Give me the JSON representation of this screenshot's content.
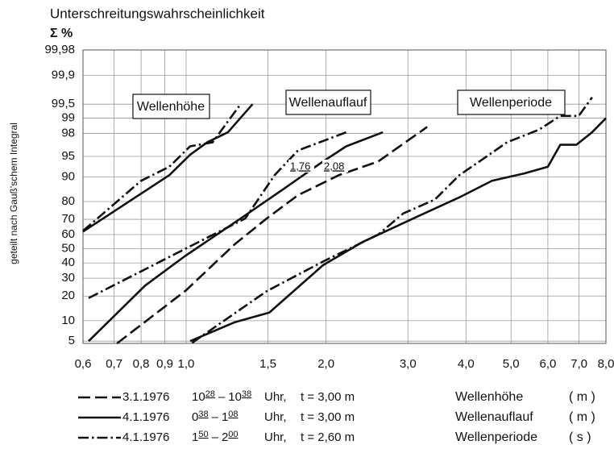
{
  "chart_data": {
    "type": "line",
    "title": "Unterschreitungswahrscheinlichkeit",
    "subtitle": "Σ %",
    "ylabel": "geteilt nach Gauß'schem Integral",
    "yscale": "probability",
    "xscale": "log",
    "grid": true,
    "xlim": [
      0.6,
      8.0
    ],
    "ylim": [
      4.6,
      99.98
    ],
    "xticks": [
      {
        "value": 0.6,
        "label": "0,6"
      },
      {
        "value": 0.7,
        "label": "0,7"
      },
      {
        "value": 0.8,
        "label": "0,8"
      },
      {
        "value": 0.9,
        "label": "0,9"
      },
      {
        "value": 1.0,
        "label": "1,0"
      },
      {
        "value": 1.5,
        "label": "1,5"
      },
      {
        "value": 2.0,
        "label": "2,0"
      },
      {
        "value": 3.0,
        "label": "3,0"
      },
      {
        "value": 4.0,
        "label": "4,0"
      },
      {
        "value": 5.0,
        "label": "5,0"
      },
      {
        "value": 6.0,
        "label": "6,0"
      },
      {
        "value": 7.0,
        "label": "7,0"
      },
      {
        "value": 8.0,
        "label": "8,0"
      }
    ],
    "yticks": [
      5,
      10,
      20,
      30,
      40,
      50,
      60,
      70,
      80,
      90,
      95,
      98,
      99,
      {
        "value": 99.5,
        "label": "99,5"
      },
      {
        "value": 99.9,
        "label": "99,9"
      },
      {
        "value": 99.98,
        "label": "99,98"
      }
    ],
    "annotations": [
      "Wellenhöhe",
      "Wellenauflauf",
      "Wellenperiode",
      "1,76",
      "2,08"
    ],
    "series": [
      {
        "group": "Wellenhöhe",
        "style": "solid",
        "x": [
          0.6,
          0.92,
          1.02,
          1.11,
          1.23,
          1.39
        ],
        "values": [
          62,
          90.5,
          95.3,
          97.1,
          98.1,
          99.5
        ]
      },
      {
        "group": "Wellenhöhe",
        "style": "dashdot",
        "x": [
          0.6,
          0.8,
          0.92,
          1.02,
          1.14,
          1.31
        ],
        "values": [
          62.5,
          88.7,
          92.8,
          96.6,
          97.1,
          99.5
        ]
      },
      {
        "group": "Wellenauflauf",
        "style": "solid",
        "x": [
          0.617,
          0.816,
          0.996,
          1.31,
          1.61,
          1.97,
          2.21,
          2.65
        ],
        "values": [
          5,
          25.6,
          45,
          70.5,
          85.3,
          94,
          96.6,
          98.1
        ]
      },
      {
        "group": "Wellenauflauf",
        "style": "dashed",
        "x": [
          0.71,
          1.0,
          1.27,
          1.49,
          1.74,
          2.13,
          2.59,
          3.3
        ],
        "values": [
          4.6,
          23,
          53,
          70.5,
          83,
          90.5,
          94,
          98.5
        ]
      },
      {
        "group": "Wellenauflauf",
        "style": "dashdot",
        "x": [
          0.617,
          0.88,
          1.12,
          1.34,
          1.55,
          1.74,
          2.21
        ],
        "values": [
          19,
          41,
          58.5,
          70.5,
          90.5,
          96,
          98.1
        ]
      },
      {
        "group": "Wellenperiode",
        "style": "solid",
        "x": [
          1.02,
          1.27,
          1.51,
          1.97,
          2.39,
          3.16,
          3.87,
          4.55,
          5.33,
          6.0,
          6.38,
          6.91,
          7.47,
          8.0
        ],
        "values": [
          5,
          9.5,
          12.8,
          38.5,
          54.6,
          72,
          82,
          88.7,
          91,
          92.8,
          96.8,
          96.8,
          98.1,
          99.0
        ]
      },
      {
        "group": "Wellenperiode",
        "style": "dashdot",
        "x": [
          1.03,
          1.49,
          1.97,
          2.59,
          2.93,
          3.43,
          3.87,
          4.35,
          4.9,
          5.74,
          6.38,
          6.99,
          7.47
        ],
        "values": [
          4.7,
          22.5,
          41,
          60,
          73.5,
          81,
          90.5,
          94.5,
          97.1,
          98.3,
          99.1,
          99.1,
          99.65
        ]
      }
    ],
    "legend": [
      {
        "style": "dashed",
        "date": "3.1.1976",
        "from_h": "10",
        "from_m": "28",
        "sep": "–",
        "to_h": "10",
        "to_m": "38",
        "unit": "Uhr,",
        "t": "t = 3,00 m"
      },
      {
        "style": "solid",
        "date": "4.1.1976",
        "from_h": "0",
        "from_m": "38",
        "sep": "–",
        "to_h": "1",
        "to_m": "08",
        "unit": "Uhr,",
        "t": "t = 3,00 m"
      },
      {
        "style": "dashdot",
        "date": "4.1.1976",
        "from_h": "1",
        "from_m": "50",
        "sep": "–",
        "to_h": "2",
        "to_m": "00",
        "unit": "Uhr,",
        "t": "t = 2,60 m"
      }
    ],
    "quantities": [
      {
        "name": "Wellenhöhe",
        "unit": "( m )"
      },
      {
        "name": "Wellenauflauf",
        "unit": "( m )"
      },
      {
        "name": "Wellenperiode",
        "unit": "( s )"
      }
    ]
  }
}
